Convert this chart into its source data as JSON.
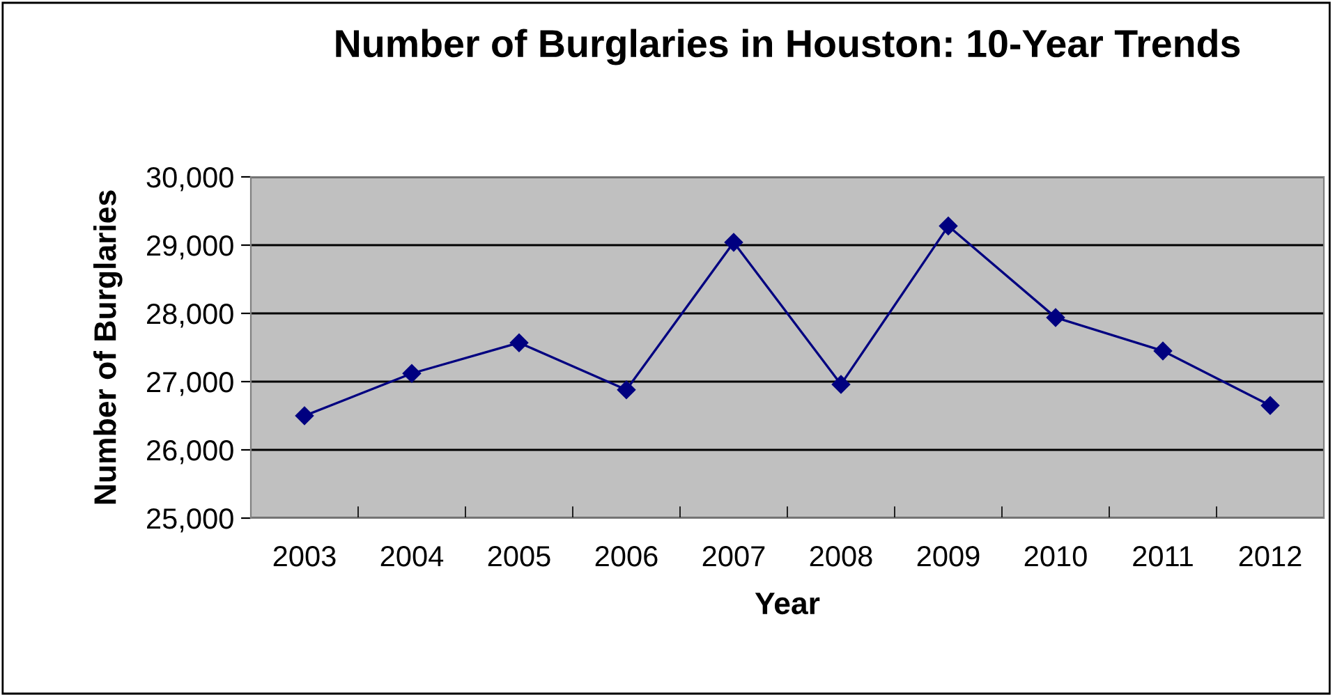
{
  "chart_data": {
    "type": "line",
    "title": "Number of Burglaries in Houston: 10-Year Trends",
    "xlabel": "Year",
    "ylabel": "Number of Burglaries",
    "categories": [
      "2003",
      "2004",
      "2005",
      "2006",
      "2007",
      "2008",
      "2009",
      "2010",
      "2011",
      "2012"
    ],
    "series": [
      {
        "color": "#000080",
        "values": [
          26500,
          27120,
          27570,
          26880,
          29040,
          26960,
          29280,
          27940,
          27450,
          26650
        ]
      }
    ],
    "ylim": [
      25000,
      30000
    ],
    "yticks": [
      {
        "value": 25000,
        "label": "25,000"
      },
      {
        "value": 26000,
        "label": "26,000"
      },
      {
        "value": 27000,
        "label": "27,000"
      },
      {
        "value": 28000,
        "label": "28,000"
      },
      {
        "value": 29000,
        "label": "29,000"
      },
      {
        "value": 30000,
        "label": "30,000"
      }
    ],
    "grid": "y",
    "marker": "diamond",
    "line_style": "solid",
    "legend": false
  }
}
